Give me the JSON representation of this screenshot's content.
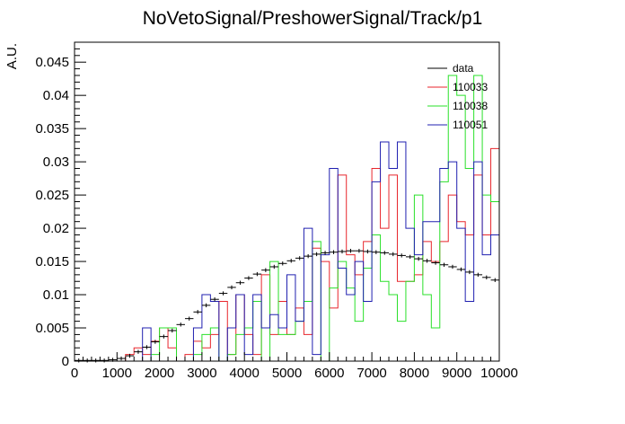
{
  "chart_data": {
    "type": "histogram-step",
    "title": "NoVetoSignal/PreshowerSignal/Track/p1",
    "xlabel": "",
    "ylabel": "A.U.",
    "xlim": [
      0,
      10000
    ],
    "ylim": [
      0,
      0.048
    ],
    "x_ticks": [
      0,
      1000,
      2000,
      3000,
      4000,
      5000,
      6000,
      7000,
      8000,
      9000,
      10000
    ],
    "x_tick_labels": [
      "0",
      "1000",
      "2000",
      "3000",
      "4000",
      "5000",
      "6000",
      "7000",
      "8000",
      "9000",
      "10000"
    ],
    "y_ticks": [
      0,
      0.005,
      0.01,
      0.015,
      0.02,
      0.025,
      0.03,
      0.035,
      0.04,
      0.045
    ],
    "y_tick_labels": [
      "0",
      "0.005",
      "0.01",
      "0.015",
      "0.02",
      "0.025",
      "0.03",
      "0.035",
      "0.04",
      "0.045"
    ],
    "bin_width": 200,
    "grid": false,
    "legend_position": "top-right",
    "legend": [
      "data",
      "110033",
      "110038",
      "110051"
    ],
    "series": [
      {
        "name": "data",
        "color": "#000000",
        "style": "points-errorbars",
        "x": [
          100,
          300,
          500,
          700,
          900,
          1100,
          1300,
          1500,
          1700,
          1900,
          2100,
          2300,
          2500,
          2700,
          2900,
          3100,
          3300,
          3500,
          3700,
          3900,
          4100,
          4300,
          4500,
          4700,
          4900,
          5100,
          5300,
          5500,
          5700,
          5900,
          6100,
          6300,
          6500,
          6700,
          6900,
          7100,
          7300,
          7500,
          7700,
          7900,
          8100,
          8300,
          8500,
          8700,
          8900,
          9100,
          9300,
          9500,
          9700,
          9900
        ],
        "values": [
          0.0001,
          0.0001,
          0.0001,
          0.0001,
          0.0002,
          0.0004,
          0.0008,
          0.0014,
          0.0021,
          0.0029,
          0.0037,
          0.0046,
          0.0055,
          0.0064,
          0.0074,
          0.0084,
          0.0093,
          0.0102,
          0.0111,
          0.0118,
          0.0125,
          0.0131,
          0.0137,
          0.0142,
          0.0147,
          0.0151,
          0.0155,
          0.0158,
          0.0161,
          0.0163,
          0.0164,
          0.0165,
          0.0166,
          0.0166,
          0.0165,
          0.0164,
          0.0163,
          0.0161,
          0.0159,
          0.0157,
          0.0154,
          0.0151,
          0.0148,
          0.0145,
          0.0142,
          0.0138,
          0.0134,
          0.013,
          0.0126,
          0.0122
        ]
      },
      {
        "name": "110033",
        "color": "#e8262c",
        "style": "step",
        "x_edges_start": 0,
        "values": [
          0,
          0,
          0,
          0,
          0,
          0,
          0.001,
          0.002,
          0.001,
          0.003,
          0.005,
          0.002,
          0,
          0.001,
          0.003,
          0.002,
          0.004,
          0.009,
          0.001,
          0.01,
          0.004,
          0.001,
          0.013,
          0.004,
          0.009,
          0.004,
          0.008,
          0.004,
          0.017,
          0.015,
          0.008,
          0.028,
          0.016,
          0.013,
          0.018,
          0.029,
          0.02,
          0.028,
          0.012,
          0.012,
          0.013,
          0.018,
          0.015,
          0.018,
          0.025,
          0.021,
          0.019,
          0.028,
          0.019,
          0.032
        ]
      },
      {
        "name": "110038",
        "color": "#2ae02a",
        "style": "step",
        "x_edges_start": 0,
        "values": [
          0,
          0,
          0,
          0,
          0,
          0,
          0,
          0,
          0,
          0.001,
          0.005,
          0.005,
          0,
          0,
          0.001,
          0.004,
          0.005,
          0,
          0.001,
          0.004,
          0.005,
          0.009,
          0,
          0.015,
          0.004,
          0.004,
          0.006,
          0.009,
          0.018,
          0,
          0.011,
          0.015,
          0.011,
          0.006,
          0.014,
          0.019,
          0.012,
          0.01,
          0.006,
          0.012,
          0.025,
          0.01,
          0.005,
          0.027,
          0.043,
          0.04,
          0.029,
          0.043,
          0.025,
          0.024
        ]
      },
      {
        "name": "110051",
        "color": "#2020b0",
        "style": "step",
        "x_edges_start": 0,
        "values": [
          0,
          0,
          0,
          0,
          0,
          0,
          0,
          0,
          0.005,
          0,
          0,
          0,
          0,
          0,
          0.005,
          0.01,
          0.009,
          0,
          0.005,
          0.01,
          0.001,
          0.01,
          0.005,
          0.007,
          0.005,
          0.013,
          0.006,
          0.02,
          0.001,
          0.016,
          0.029,
          0.014,
          0.01,
          0.015,
          0.009,
          0.027,
          0.033,
          0.029,
          0.033,
          0.02,
          0.016,
          0.021,
          0.021,
          0.029,
          0.03,
          0.02,
          0.009,
          0.03,
          0.016,
          0.019
        ]
      }
    ]
  }
}
